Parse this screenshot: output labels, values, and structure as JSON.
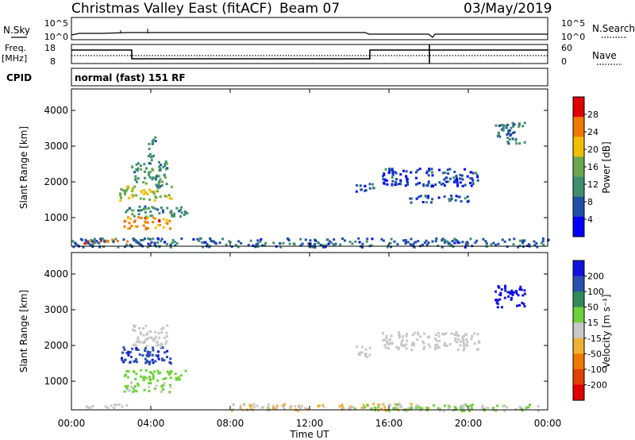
{
  "header": {
    "station": "Christmas Valley East (fitACF)",
    "beam": "Beam 07",
    "date": "03/May/2019"
  },
  "nsky_panel": {
    "left_label": "N.Sky",
    "right_label": "N.Search",
    "left_ticks": [
      "10^5",
      "10^0"
    ],
    "right_ticks": [
      "10^5",
      "10^0"
    ]
  },
  "freq_panel": {
    "left_label_line1": "Freq.",
    "left_label_line2": "[MHz]",
    "right_label": "Nave",
    "left_ticks": [
      "18",
      "8"
    ],
    "right_ticks": [
      "60",
      "0"
    ]
  },
  "cpid": {
    "label": "CPID",
    "text": "normal (fast) 151 RF"
  },
  "colors": {
    "power": [
      "#0000ff",
      "#1f4fa8",
      "#3f8f6f",
      "#6aa84f",
      "#f0c000",
      "#f07800",
      "#e00000"
    ],
    "velocity": [
      "#1010e0",
      "#2a4fb0",
      "#2e8b57",
      "#6fd13a",
      "#c8c8c8",
      "#f0b030",
      "#f07800",
      "#e04000",
      "#e00000"
    ],
    "ground_scatter": "#b0b0b0"
  },
  "x_axis": {
    "label": "Time UT",
    "ticks": [
      "00:00",
      "04:00",
      "08:00",
      "12:00",
      "16:00",
      "20:00",
      "00:00"
    ]
  },
  "chart_data": [
    {
      "type": "heatmap",
      "name": "power",
      "ylabel": "Slant Range [km]",
      "yticks": [
        "4000",
        "3000",
        "2000",
        "1000"
      ],
      "ylim": [
        200,
        4600
      ],
      "xlim": [
        0,
        24
      ],
      "colorbar_label": "Power [dB]",
      "colorbar_ticks": [
        "28",
        "24",
        "20",
        "16",
        "12",
        "8",
        "4"
      ],
      "colorbar_range": [
        0,
        32
      ],
      "regions": [
        {
          "t0": 0.5,
          "t1": 2.8,
          "r0": 300,
          "r1": 420,
          "value": 26
        },
        {
          "t0": 2.6,
          "t1": 5.0,
          "r0": 700,
          "r1": 1050,
          "value": 24
        },
        {
          "t0": 2.6,
          "t1": 5.8,
          "r0": 1050,
          "r1": 1350,
          "value": 12
        },
        {
          "t0": 2.4,
          "t1": 5.0,
          "r0": 1500,
          "r1": 1900,
          "value": 18
        },
        {
          "t0": 3.0,
          "t1": 4.8,
          "r0": 1900,
          "r1": 2600,
          "value": 12
        },
        {
          "t0": 3.8,
          "t1": 4.2,
          "r0": 2600,
          "r1": 3300,
          "value": 10
        },
        {
          "t0": 14.3,
          "t1": 15.2,
          "r0": 1700,
          "r1": 2000,
          "value": 8
        },
        {
          "t0": 15.6,
          "t1": 20.5,
          "r0": 1900,
          "r1": 2400,
          "value": 6
        },
        {
          "t0": 17.0,
          "t1": 20.0,
          "r0": 1450,
          "r1": 1650,
          "value": 8
        },
        {
          "t0": 21.3,
          "t1": 22.8,
          "r0": 3100,
          "r1": 3700,
          "value": 10
        },
        {
          "t0": 0.0,
          "t1": 24.0,
          "r0": 200,
          "r1": 450,
          "value": 8
        }
      ]
    },
    {
      "type": "heatmap",
      "name": "velocity",
      "ylabel": "Slant Range [km]",
      "yticks": [
        "4000",
        "3000",
        "2000",
        "1000"
      ],
      "ylim": [
        200,
        4600
      ],
      "xlim": [
        0,
        24
      ],
      "colorbar_label": "Velocity [m s⁻¹]",
      "colorbar_ticks": [
        "200",
        "100",
        "50",
        "15",
        "-15",
        "-50",
        "-100",
        "-200"
      ],
      "colorbar_range": [
        -250,
        250
      ],
      "regions": [
        {
          "t0": 0.5,
          "t1": 2.8,
          "r0": 280,
          "r1": 400,
          "value": 0
        },
        {
          "t0": 2.6,
          "t1": 5.0,
          "r0": 700,
          "r1": 1000,
          "value": 30
        },
        {
          "t0": 2.6,
          "t1": 5.8,
          "r0": 1050,
          "r1": 1350,
          "value": 60
        },
        {
          "t0": 2.4,
          "t1": 5.0,
          "r0": 1500,
          "r1": 2000,
          "value": 180
        },
        {
          "t0": 3.0,
          "t1": 4.8,
          "r0": 2000,
          "r1": 2600,
          "value": 5
        },
        {
          "t0": 14.3,
          "t1": 15.2,
          "r0": 1700,
          "r1": 2000,
          "value": 0
        },
        {
          "t0": 15.6,
          "t1": 20.5,
          "r0": 1900,
          "r1": 2400,
          "value": 0
        },
        {
          "t0": 21.3,
          "t1": 22.8,
          "r0": 3100,
          "r1": 3700,
          "value": 220
        },
        {
          "t0": 8.0,
          "t1": 18.0,
          "r0": 200,
          "r1": 400,
          "value": -30
        },
        {
          "t0": 14.0,
          "t1": 24.0,
          "r0": 200,
          "r1": 380,
          "value": 30
        }
      ]
    }
  ]
}
